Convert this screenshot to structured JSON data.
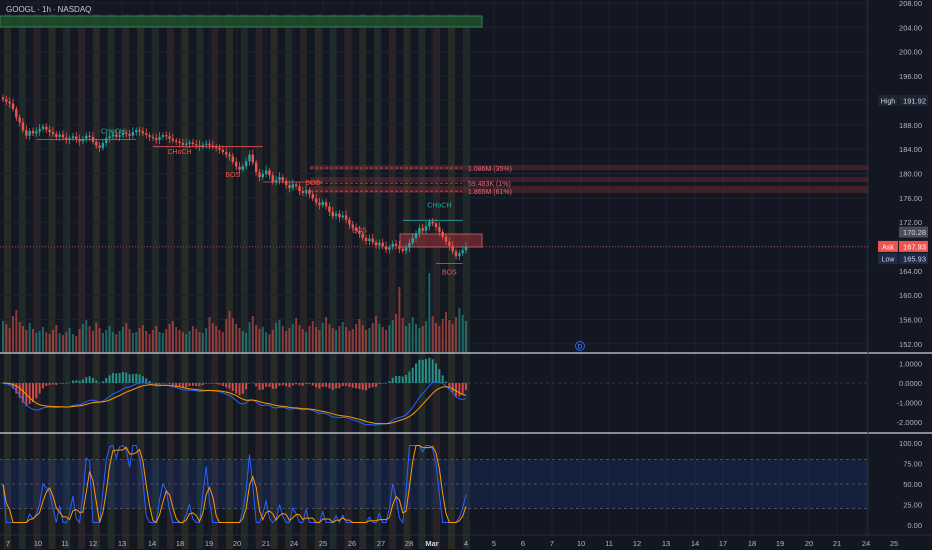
{
  "header": {
    "symbol": "GOOGL",
    "interval": "1h",
    "exchange": "NASDAQ",
    "sep1": "·",
    "sep2": "·"
  },
  "colors": {
    "bg": "#131722",
    "grid": "#1e2230",
    "up": "#26a69a",
    "down": "#ef5350",
    "axis_text": "#b2b5be",
    "macd_line": "#2962ff",
    "signal_line": "#ff9800",
    "stoch_k": "#2962ff",
    "stoch_d": "#ff9800",
    "zone_red": "#7a2a33",
    "zone_green": "#1f4d2e"
  },
  "chart_data": [
    {
      "type": "candlestick",
      "panel": "price",
      "yaxis_ticks": [
        "208.00",
        "204.00",
        "200.00",
        "196.00",
        "192.00",
        "188.00",
        "184.00",
        "180.00",
        "176.00",
        "172.00",
        "168.00",
        "164.00",
        "160.00",
        "156.00",
        "152.00"
      ],
      "ylim": [
        150.5,
        208.5
      ],
      "xaxis_ticks": [
        "7",
        "10",
        "11",
        "12",
        "13",
        "14",
        "18",
        "19",
        "20",
        "21",
        "24",
        "25",
        "26",
        "27",
        "28",
        "Mar",
        "4",
        "5",
        "6",
        "7",
        "10",
        "11",
        "12",
        "13",
        "14",
        "17",
        "18",
        "19",
        "20",
        "21",
        "24",
        "25"
      ],
      "price_labels": [
        {
          "label": "High",
          "value": "191.92",
          "price": 191.92,
          "style": "high"
        },
        {
          "label": "",
          "value": "170.28",
          "price": 170.28,
          "style": "neutral"
        },
        {
          "label": "Ask",
          "value": "167.93",
          "price": 167.93,
          "style": "ask"
        },
        {
          "label": "Low",
          "value": "165.93",
          "price": 165.93,
          "style": "low"
        }
      ],
      "volume_profile_levels": [
        {
          "text": "1.086M (35%)",
          "price": 180.9
        },
        {
          "text": "59.483K (1%)",
          "price": 178.4
        },
        {
          "text": "1.865M (61%)",
          "price": 177.1
        }
      ],
      "annotations": [
        {
          "text": "CHoCH",
          "kind": "bull",
          "price": 186.6,
          "x_index": 33
        },
        {
          "text": "CHoCH",
          "kind": "bear",
          "price": 183.2,
          "x_index": 53
        },
        {
          "text": "BOS",
          "kind": "bear",
          "price": 179.4,
          "x_index": 69
        },
        {
          "text": "BOS",
          "kind": "bear",
          "price": 178.1,
          "x_index": 93
        },
        {
          "text": "BOS",
          "kind": "bear",
          "price": 170.3,
          "x_index": 107
        },
        {
          "text": "CHoCH",
          "kind": "bull",
          "price": 174.4,
          "x_index": 131
        },
        {
          "text": "BOS",
          "kind": "bear",
          "price": 163.4,
          "x_index": 134
        }
      ],
      "marker": {
        "text": "D"
      },
      "close": [
        192.2,
        191.8,
        191.5,
        190.6,
        189.2,
        188.4,
        187.1,
        186.2,
        187.0,
        186.6,
        186.9,
        187.3,
        187.7,
        187.2,
        186.8,
        186.5,
        186.0,
        186.4,
        185.9,
        185.5,
        185.8,
        186.1,
        185.6,
        185.3,
        185.7,
        186.2,
        186.0,
        185.2,
        184.6,
        184.2,
        185.0,
        185.8,
        186.1,
        186.4,
        186.0,
        186.3,
        186.7,
        186.5,
        186.2,
        186.8,
        187.1,
        186.9,
        186.6,
        186.3,
        186.0,
        185.8,
        185.5,
        186.0,
        186.3,
        186.1,
        185.7,
        185.4,
        185.2,
        185.0,
        184.7,
        184.9,
        185.1,
        184.8,
        184.6,
        184.4,
        184.7,
        184.9,
        184.6,
        184.4,
        184.2,
        183.9,
        183.5,
        183.1,
        182.8,
        181.9,
        181.1,
        180.6,
        181.2,
        182.0,
        183.1,
        181.8,
        180.2,
        179.4,
        179.9,
        180.5,
        179.7,
        178.6,
        178.9,
        179.4,
        178.8,
        178.1,
        177.6,
        178.2,
        177.9,
        177.1,
        176.8,
        177.3,
        176.6,
        175.9,
        175.2,
        174.8,
        175.3,
        174.6,
        173.7,
        173.0,
        173.4,
        172.8,
        173.1,
        172.4,
        171.6,
        171.1,
        170.6,
        170.1,
        169.4,
        168.9,
        169.3,
        168.7,
        168.2,
        168.6,
        168.0,
        167.5,
        167.9,
        168.4,
        168.1,
        167.6,
        167.3,
        167.8,
        168.6,
        169.4,
        170.2,
        171.0,
        170.6,
        171.3,
        172.1,
        171.8,
        171.2,
        170.4,
        169.6,
        168.8,
        168.1,
        167.2,
        166.4,
        166.9,
        167.4,
        167.9
      ],
      "volume": [
        3.1,
        2.8,
        2.4,
        3.6,
        4.2,
        3.0,
        2.6,
        2.2,
        2.9,
        2.3,
        1.9,
        2.1,
        2.5,
        2.0,
        1.8,
        2.2,
        2.7,
        1.9,
        1.7,
        2.0,
        2.4,
        1.8,
        1.6,
        2.3,
        2.8,
        3.2,
        2.6,
        2.1,
        2.9,
        2.4,
        1.9,
        2.2,
        2.6,
        2.0,
        1.8,
        2.1,
        2.5,
        2.9,
        2.3,
        1.9,
        2.0,
        2.4,
        2.7,
        2.1,
        1.8,
        2.2,
        2.6,
        2.0,
        1.9,
        2.3,
        2.8,
        3.1,
        2.5,
        2.2,
        2.0,
        1.8,
        2.1,
        2.6,
        2.3,
        2.0,
        1.9,
        2.4,
        3.5,
        2.9,
        2.6,
        2.2,
        2.0,
        3.3,
        4.1,
        3.4,
        2.8,
        2.4,
        2.1,
        1.9,
        3.0,
        3.6,
        2.7,
        2.3,
        2.5,
        2.0,
        1.8,
        2.2,
        2.9,
        3.2,
        2.6,
        2.1,
        2.4,
        2.8,
        3.4,
        2.7,
        2.3,
        2.0,
        2.6,
        3.1,
        2.5,
        2.2,
        2.9,
        3.5,
        2.8,
        2.4,
        2.2,
        2.6,
        3.0,
        2.5,
        2.1,
        2.3,
        2.8,
        3.3,
        2.7,
        2.2,
        2.4,
        2.9,
        3.6,
        2.8,
        2.5,
        2.2,
        2.7,
        3.2,
        3.8,
        6.5,
        3.4,
        2.6,
        2.9,
        3.5,
        2.8,
        2.4,
        2.6,
        3.1,
        7.9,
        3.6,
        2.9,
        2.6,
        3.3,
        4.0,
        3.2,
        2.8,
        3.5,
        4.4,
        3.7,
        3.1
      ]
    },
    {
      "type": "line",
      "panel": "macd",
      "yaxis_ticks": [
        "1.0000",
        "0.0000",
        "-1.0000",
        "-2.0000"
      ],
      "ylim": [
        -2.7,
        1.6
      ]
    },
    {
      "type": "line",
      "panel": "stochastic",
      "yaxis_ticks": [
        "100.00",
        "75.00",
        "50.00",
        "25.00",
        "0.00"
      ],
      "ylim": [
        -5,
        108
      ],
      "band": [
        20,
        80
      ]
    }
  ]
}
